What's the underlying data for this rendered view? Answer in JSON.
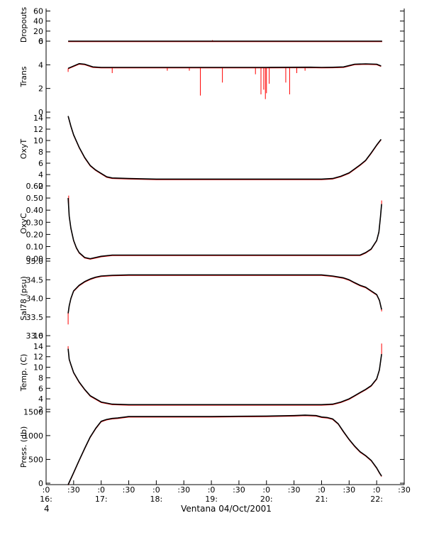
{
  "figure": {
    "xlabel": "Ventana 04/Oct/2001",
    "corner_label": "4"
  },
  "colors": {
    "axes": "#000000",
    "data": "#000000",
    "raw": "#ff0000",
    "background": "#ffffff"
  },
  "time_axis": {
    "xlim": [
      16.0,
      22.5
    ],
    "ticks": [
      {
        "t": 16.0,
        "top": ":0",
        "bottom": "16:"
      },
      {
        "t": 16.5,
        "top": ":30",
        "bottom": ""
      },
      {
        "t": 17.0,
        "top": ":0",
        "bottom": "17:"
      },
      {
        "t": 17.5,
        "top": ":30",
        "bottom": ""
      },
      {
        "t": 18.0,
        "top": ":0",
        "bottom": "18:"
      },
      {
        "t": 18.5,
        "top": ":30",
        "bottom": ""
      },
      {
        "t": 19.0,
        "top": ":0",
        "bottom": "19:"
      },
      {
        "t": 19.5,
        "top": ":30",
        "bottom": ""
      },
      {
        "t": 20.0,
        "top": ":0",
        "bottom": "20:"
      },
      {
        "t": 20.5,
        "top": ":30",
        "bottom": ""
      },
      {
        "t": 21.0,
        "top": ":0",
        "bottom": "21:"
      },
      {
        "t": 21.5,
        "top": ":30",
        "bottom": ""
      },
      {
        "t": 22.0,
        "top": ":0",
        "bottom": "22:"
      },
      {
        "t": 22.5,
        "top": ":30",
        "bottom": ""
      }
    ]
  },
  "chart_data": [
    {
      "type": "line",
      "ylabel": "Dropouts",
      "ylim": [
        0,
        65
      ],
      "yticks": [
        0,
        20,
        40,
        60
      ],
      "yticklabels": [
        "0",
        "20",
        "40",
        "60"
      ],
      "x": [
        16.4,
        22.1
      ],
      "y": [
        0,
        0
      ],
      "raw_spikes": [
        {
          "x": 19.02,
          "y": 2
        }
      ]
    },
    {
      "type": "line",
      "ylabel": "Trans",
      "ylim": [
        0,
        6
      ],
      "yticks": [
        0,
        2,
        4,
        6
      ],
      "yticklabels": [
        "0",
        "2",
        "4",
        "6"
      ],
      "x": [
        16.4,
        16.6,
        16.7,
        16.85,
        17.0,
        18.0,
        19.0,
        20.0,
        20.8,
        21.0,
        21.2,
        21.4,
        21.6,
        21.8,
        22.0,
        22.08
      ],
      "y": [
        3.7,
        4.1,
        4.05,
        3.82,
        3.78,
        3.78,
        3.78,
        3.78,
        3.8,
        3.78,
        3.79,
        3.82,
        4.05,
        4.08,
        4.05,
        3.9
      ],
      "raw_spikes": [
        {
          "x": 16.4,
          "y": 3.4
        },
        {
          "x": 17.2,
          "y": 3.3
        },
        {
          "x": 18.2,
          "y": 3.5
        },
        {
          "x": 18.6,
          "y": 3.5
        },
        {
          "x": 18.8,
          "y": 1.4
        },
        {
          "x": 19.2,
          "y": 2.5
        },
        {
          "x": 19.8,
          "y": 3.2
        },
        {
          "x": 19.9,
          "y": 1.5
        },
        {
          "x": 19.95,
          "y": 1.9
        },
        {
          "x": 19.98,
          "y": 1.1
        },
        {
          "x": 20.0,
          "y": 1.6
        },
        {
          "x": 20.05,
          "y": 2.4
        },
        {
          "x": 20.35,
          "y": 2.5
        },
        {
          "x": 20.42,
          "y": 1.5
        },
        {
          "x": 20.55,
          "y": 3.3
        },
        {
          "x": 20.7,
          "y": 3.5
        }
      ]
    },
    {
      "type": "line",
      "ylabel": "OxyT",
      "ylim": [
        2,
        15
      ],
      "yticks": [
        2,
        4,
        6,
        8,
        10,
        12,
        14
      ],
      "yticklabels": [
        "2",
        "4",
        "6",
        "8",
        "10",
        "12",
        "14"
      ],
      "x": [
        16.4,
        16.45,
        16.5,
        16.6,
        16.7,
        16.8,
        16.9,
        17.0,
        17.1,
        17.2,
        17.5,
        18.0,
        18.5,
        19.0,
        19.5,
        20.0,
        20.5,
        21.0,
        21.2,
        21.35,
        21.5,
        21.6,
        21.7,
        21.8,
        21.9,
        22.0,
        22.08
      ],
      "y": [
        14.3,
        12.5,
        11.0,
        8.8,
        7.0,
        5.6,
        4.8,
        4.2,
        3.6,
        3.4,
        3.3,
        3.2,
        3.2,
        3.2,
        3.2,
        3.2,
        3.2,
        3.2,
        3.3,
        3.7,
        4.3,
        5.0,
        5.7,
        6.5,
        7.8,
        9.2,
        10.2
      ],
      "raw_spikes": []
    },
    {
      "type": "line",
      "ylabel": "OxyC",
      "ylim": [
        -0.02,
        0.6
      ],
      "yticks": [
        0.0,
        0.1,
        0.2,
        0.3,
        0.4,
        0.5,
        0.6
      ],
      "yticklabels": [
        "0.00",
        "0.10",
        "0.20",
        "0.30",
        "0.40",
        "0.50",
        "0.60"
      ],
      "x": [
        16.4,
        16.42,
        16.45,
        16.5,
        16.55,
        16.6,
        16.7,
        16.8,
        16.9,
        17.0,
        17.2,
        17.5,
        18.0,
        18.5,
        19.0,
        19.5,
        20.0,
        20.5,
        21.0,
        21.5,
        21.7,
        21.8,
        21.9,
        22.0,
        22.04,
        22.07,
        22.09
      ],
      "y": [
        0.5,
        0.35,
        0.25,
        0.15,
        0.09,
        0.05,
        0.01,
        0.0,
        0.01,
        0.02,
        0.03,
        0.03,
        0.03,
        0.03,
        0.03,
        0.03,
        0.03,
        0.03,
        0.03,
        0.03,
        0.03,
        0.05,
        0.08,
        0.15,
        0.22,
        0.35,
        0.45
      ],
      "raw_spikes": [
        {
          "x": 16.41,
          "y": 0.52
        },
        {
          "x": 22.09,
          "y": 0.48
        }
      ]
    },
    {
      "type": "line",
      "ylabel": "Sal78 (psu)",
      "ylim": [
        33.0,
        35.0
      ],
      "yticks": [
        33.0,
        33.5,
        34.0,
        34.5,
        35.0
      ],
      "yticklabels": [
        "33.0",
        "33.5",
        "34.0",
        "34.5",
        "35.0"
      ],
      "x": [
        16.4,
        16.42,
        16.45,
        16.5,
        16.6,
        16.7,
        16.8,
        16.9,
        17.0,
        17.2,
        17.5,
        18.0,
        18.5,
        19.0,
        19.5,
        20.0,
        20.5,
        21.0,
        21.2,
        21.4,
        21.5,
        21.6,
        21.7,
        21.8,
        21.9,
        22.0,
        22.05,
        22.09
      ],
      "y": [
        33.6,
        33.8,
        34.0,
        34.2,
        34.35,
        34.45,
        34.52,
        34.57,
        34.6,
        34.62,
        34.63,
        34.63,
        34.63,
        34.63,
        34.63,
        34.63,
        34.63,
        34.63,
        34.6,
        34.55,
        34.5,
        34.42,
        34.35,
        34.3,
        34.2,
        34.1,
        33.95,
        33.7
      ],
      "raw_spikes": [
        {
          "x": 16.4,
          "y": 33.3
        },
        {
          "x": 22.09,
          "y": 33.65
        }
      ]
    },
    {
      "type": "line",
      "ylabel": "Temp. (C)",
      "ylim": [
        2,
        16
      ],
      "yticks": [
        2,
        4,
        6,
        8,
        10,
        12,
        14,
        16
      ],
      "yticklabels": [
        "2",
        "4",
        "6",
        "8",
        "10",
        "12",
        "14",
        "16"
      ],
      "x": [
        16.4,
        16.42,
        16.45,
        16.5,
        16.6,
        16.7,
        16.8,
        16.9,
        17.0,
        17.2,
        17.5,
        18.0,
        18.5,
        19.0,
        19.5,
        20.0,
        20.5,
        21.0,
        21.2,
        21.35,
        21.5,
        21.6,
        21.7,
        21.8,
        21.9,
        22.0,
        22.05,
        22.09
      ],
      "y": [
        13.5,
        11.5,
        10.5,
        9.0,
        7.2,
        5.8,
        4.6,
        4.0,
        3.4,
        3.0,
        2.9,
        2.9,
        2.9,
        2.9,
        2.9,
        2.9,
        2.9,
        2.9,
        3.0,
        3.4,
        4.0,
        4.6,
        5.2,
        5.8,
        6.5,
        7.8,
        9.5,
        12.5
      ],
      "raw_spikes": [
        {
          "x": 16.4,
          "y": 14.0
        },
        {
          "x": 22.09,
          "y": 14.5
        }
      ]
    },
    {
      "type": "line",
      "ylabel": "Press. (db)",
      "ylim": [
        -30,
        1550
      ],
      "yticks": [
        0,
        500,
        1000,
        1500
      ],
      "yticklabels": [
        "0",
        "500",
        "1000",
        "1500"
      ],
      "x": [
        16.4,
        16.5,
        16.6,
        16.7,
        16.8,
        16.9,
        17.0,
        17.05,
        17.1,
        17.2,
        17.3,
        17.5,
        18.0,
        18.5,
        19.0,
        19.5,
        20.0,
        20.5,
        20.7,
        20.9,
        21.0,
        21.1,
        21.2,
        21.3,
        21.4,
        21.5,
        21.6,
        21.7,
        21.8,
        21.9,
        22.0,
        22.05,
        22.09
      ],
      "y": [
        -30,
        220,
        480,
        730,
        970,
        1150,
        1300,
        1320,
        1340,
        1360,
        1370,
        1400,
        1400,
        1400,
        1400,
        1405,
        1410,
        1420,
        1430,
        1420,
        1390,
        1380,
        1350,
        1250,
        1080,
        920,
        780,
        660,
        580,
        480,
        320,
        220,
        150
      ],
      "raw_spikes": []
    }
  ]
}
